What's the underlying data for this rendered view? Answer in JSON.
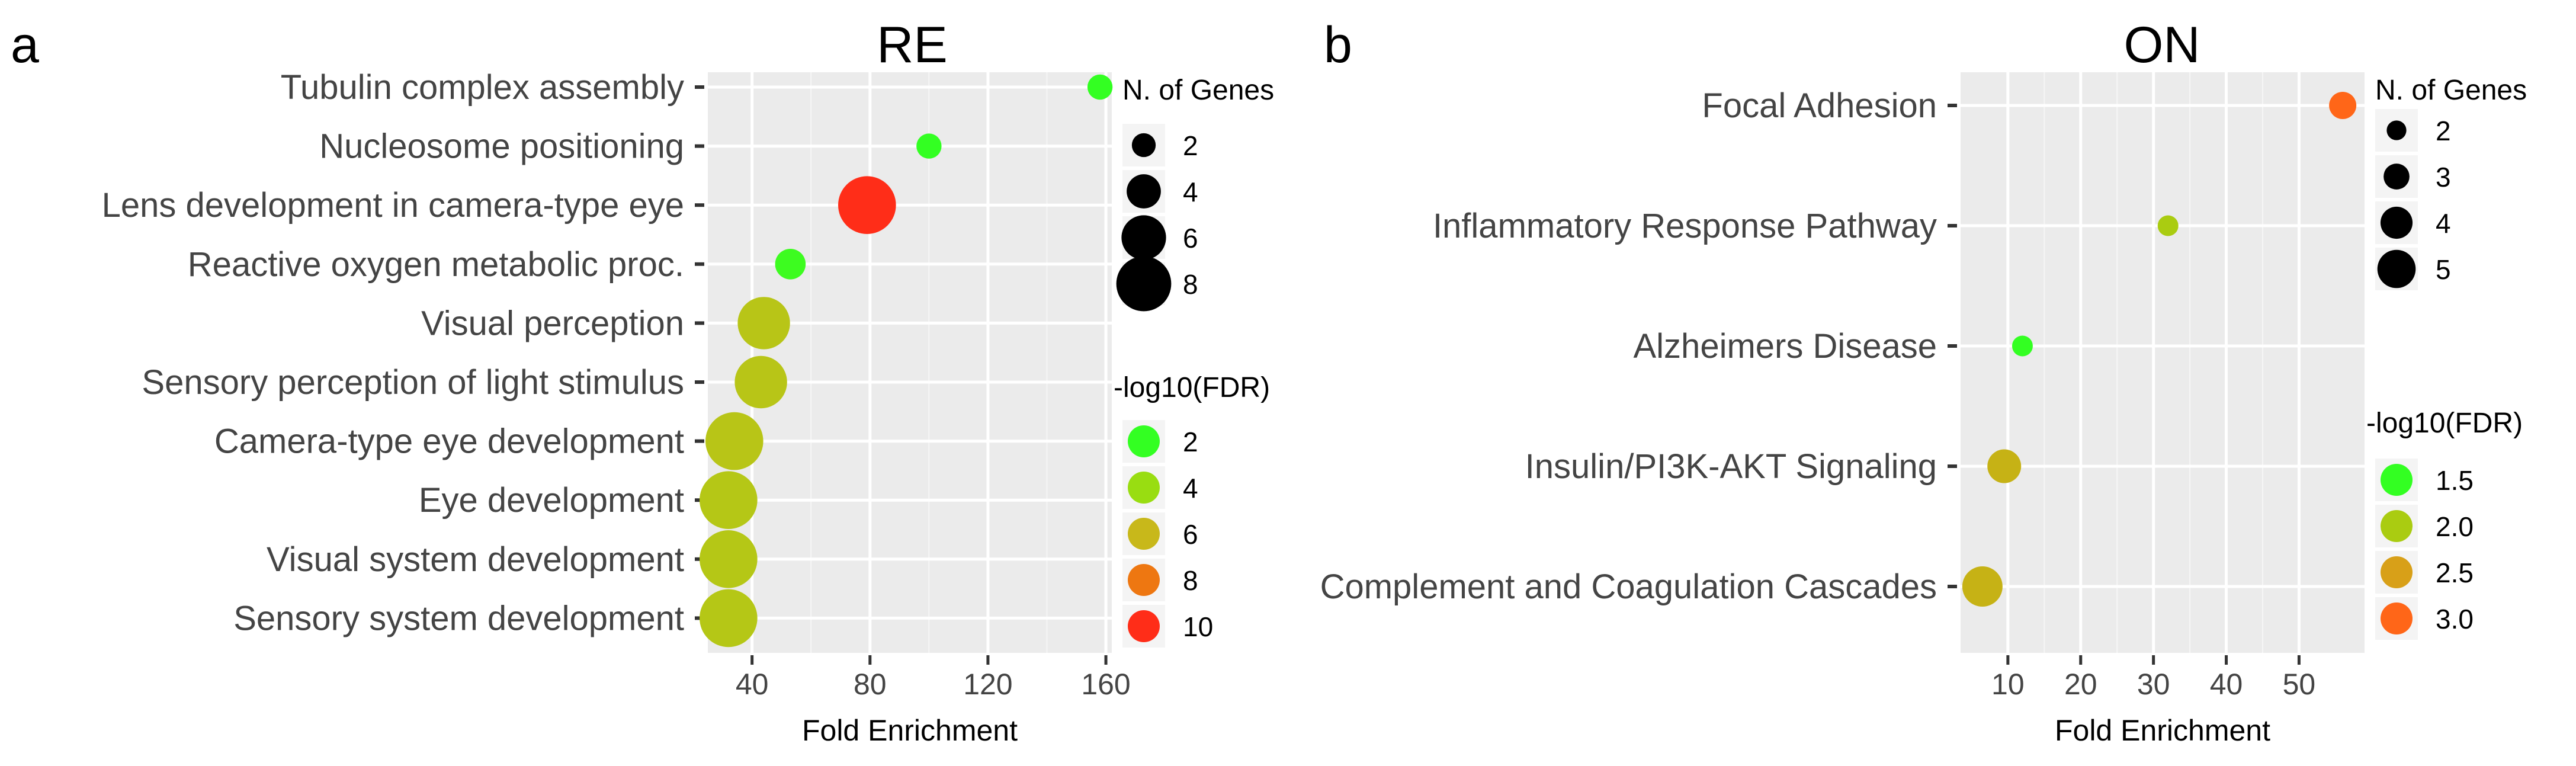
{
  "chart_data": [
    {
      "type": "scatter",
      "panel_letter": "a",
      "title": "RE",
      "xlabel": "Fold Enrichment",
      "ylabel": "",
      "xlim": [
        25,
        162
      ],
      "xticks": [
        40,
        80,
        120,
        160
      ],
      "grid": true,
      "categories": [
        "Tubulin complex assembly",
        "Nucleosome positioning",
        "Lens development in camera-type eye",
        "Reactive oxygen metabolic proc.",
        "Visual perception",
        "Sensory perception of light stimulus",
        "Camera-type eye development",
        "Eye development",
        "Visual system development",
        "Sensory system development"
      ],
      "points": [
        {
          "term": "Tubulin complex assembly",
          "fold_enrichment": 158,
          "n_genes": 2,
          "neg_log10_fdr": 2.0
        },
        {
          "term": "Nucleosome positioning",
          "fold_enrichment": 100,
          "n_genes": 2,
          "neg_log10_fdr": 2.0
        },
        {
          "term": "Lens development in camera-type eye",
          "fold_enrichment": 79,
          "n_genes": 8,
          "neg_log10_fdr": 10.0
        },
        {
          "term": "Reactive oxygen metabolic proc.",
          "fold_enrichment": 53,
          "n_genes": 3,
          "neg_log10_fdr": 2.2
        },
        {
          "term": "Visual perception",
          "fold_enrichment": 44,
          "n_genes": 7,
          "neg_log10_fdr": 5.3
        },
        {
          "term": "Sensory perception of light stimulus",
          "fold_enrichment": 43,
          "n_genes": 7,
          "neg_log10_fdr": 5.3
        },
        {
          "term": "Camera-type eye development",
          "fold_enrichment": 34,
          "n_genes": 8,
          "neg_log10_fdr": 5.3
        },
        {
          "term": "Eye development",
          "fold_enrichment": 32,
          "n_genes": 8,
          "neg_log10_fdr": 5.2
        },
        {
          "term": "Visual system development",
          "fold_enrichment": 32,
          "n_genes": 8,
          "neg_log10_fdr": 5.2
        },
        {
          "term": "Sensory system development",
          "fold_enrichment": 32,
          "n_genes": 8,
          "neg_log10_fdr": 5.2
        }
      ],
      "size_legend": {
        "title": "N. of Genes",
        "entries": [
          {
            "label": "2",
            "value": 2
          },
          {
            "label": "4",
            "value": 4
          },
          {
            "label": "6",
            "value": 6
          },
          {
            "label": "8",
            "value": 8
          }
        ]
      },
      "color_legend": {
        "title": "-log10(FDR)",
        "domain": [
          2,
          10
        ],
        "colors": [
          "#33ff22",
          "#99dd11",
          "#c8b81a",
          "#ee7711",
          "#ff2d18"
        ],
        "entries": [
          {
            "label": "2",
            "value": 2
          },
          {
            "label": "4",
            "value": 4
          },
          {
            "label": "6",
            "value": 6
          },
          {
            "label": "8",
            "value": 8
          },
          {
            "label": "10",
            "value": 10
          }
        ]
      }
    },
    {
      "type": "scatter",
      "panel_letter": "b",
      "title": "ON",
      "xlabel": "Fold Enrichment",
      "ylabel": "",
      "xlim": [
        3.5,
        59
      ],
      "xticks": [
        10,
        20,
        30,
        40,
        50
      ],
      "grid": true,
      "categories": [
        "Focal Adhesion",
        "Inflammatory Response Pathway",
        "Alzheimers Disease",
        "Insulin/PI3K-AKT Signaling",
        "Complement and Coagulation Cascades"
      ],
      "points": [
        {
          "term": "Focal Adhesion",
          "fold_enrichment": 56,
          "n_genes": 3,
          "neg_log10_fdr": 3.0
        },
        {
          "term": "Inflammatory Response Pathway",
          "fold_enrichment": 32,
          "n_genes": 2,
          "neg_log10_fdr": 2.0
        },
        {
          "term": "Alzheimers Disease",
          "fold_enrichment": 12,
          "n_genes": 2,
          "neg_log10_fdr": 1.5
        },
        {
          "term": "Insulin/PI3K-AKT Signaling",
          "fold_enrichment": 9.5,
          "n_genes": 4,
          "neg_log10_fdr": 2.3
        },
        {
          "term": "Complement and Coagulation Cascades",
          "fold_enrichment": 6.5,
          "n_genes": 5,
          "neg_log10_fdr": 2.3
        }
      ],
      "size_legend": {
        "title": "N. of Genes",
        "entries": [
          {
            "label": "2",
            "value": 2
          },
          {
            "label": "3",
            "value": 3
          },
          {
            "label": "4",
            "value": 4
          },
          {
            "label": "5",
            "value": 5
          }
        ]
      },
      "color_legend": {
        "title": "-log10(FDR)",
        "domain": [
          1.5,
          3.0
        ],
        "colors": [
          "#33ff22",
          "#aacc11",
          "#d8a018",
          "#ff6618"
        ],
        "entries": [
          {
            "label": "1.5",
            "value": 1.5
          },
          {
            "label": "2.0",
            "value": 2.0
          },
          {
            "label": "2.5",
            "value": 2.5
          },
          {
            "label": "3.0",
            "value": 3.0
          }
        ]
      }
    }
  ]
}
